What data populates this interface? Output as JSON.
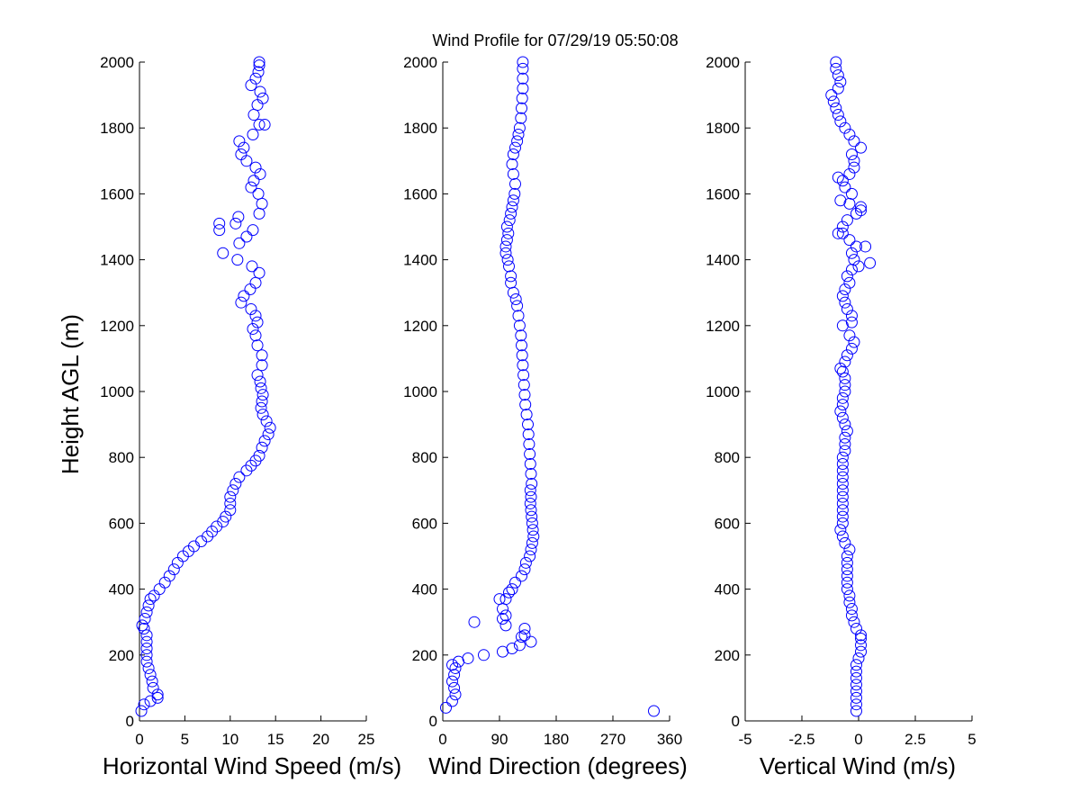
{
  "figure": {
    "title": "Wind Profile for  07/29/19 05:50:08",
    "ylabel": "Height AGL (m)",
    "marker_color": "#0000ff"
  },
  "chart_data": [
    {
      "type": "scatter",
      "xlabel": "Horizontal Wind Speed (m/s)",
      "ylabel": "Height AGL (m)",
      "xlim": [
        0,
        25
      ],
      "ylim": [
        0,
        2000
      ],
      "xticks": [
        0,
        5,
        10,
        15,
        20,
        25
      ],
      "xtick_labels": [
        "0",
        "5",
        "10",
        "15",
        "20",
        "25"
      ],
      "yticks": [
        0,
        200,
        400,
        600,
        800,
        1000,
        1200,
        1400,
        1600,
        1800,
        2000
      ],
      "ytick_labels": [
        "0",
        "200",
        "400",
        "600",
        "800",
        "1000",
        "1200",
        "1400",
        "1600",
        "1800",
        "2000"
      ],
      "points": [
        [
          0.2,
          30
        ],
        [
          0.5,
          50
        ],
        [
          1.2,
          60
        ],
        [
          2.0,
          70
        ],
        [
          2.0,
          80
        ],
        [
          1.5,
          100
        ],
        [
          1.4,
          120
        ],
        [
          1.2,
          140
        ],
        [
          1.0,
          160
        ],
        [
          0.8,
          180
        ],
        [
          0.8,
          200
        ],
        [
          0.8,
          220
        ],
        [
          0.8,
          240
        ],
        [
          0.8,
          260
        ],
        [
          0.5,
          280
        ],
        [
          0.3,
          290
        ],
        [
          0.6,
          310
        ],
        [
          0.8,
          330
        ],
        [
          1.0,
          350
        ],
        [
          1.2,
          370
        ],
        [
          1.6,
          380
        ],
        [
          2.2,
          400
        ],
        [
          2.8,
          420
        ],
        [
          3.3,
          440
        ],
        [
          3.8,
          460
        ],
        [
          4.2,
          480
        ],
        [
          4.8,
          500
        ],
        [
          5.4,
          515
        ],
        [
          6.0,
          530
        ],
        [
          6.8,
          545
        ],
        [
          7.5,
          560
        ],
        [
          8.0,
          575
        ],
        [
          8.5,
          590
        ],
        [
          9.2,
          605
        ],
        [
          9.5,
          620
        ],
        [
          10.0,
          640
        ],
        [
          10.0,
          660
        ],
        [
          10.0,
          680
        ],
        [
          10.3,
          700
        ],
        [
          10.6,
          720
        ],
        [
          11.0,
          740
        ],
        [
          11.8,
          760
        ],
        [
          12.3,
          775
        ],
        [
          12.8,
          790
        ],
        [
          13.2,
          805
        ],
        [
          13.5,
          830
        ],
        [
          13.8,
          850
        ],
        [
          14.2,
          870
        ],
        [
          14.4,
          890
        ],
        [
          14.0,
          910
        ],
        [
          13.6,
          930
        ],
        [
          13.4,
          950
        ],
        [
          13.5,
          970
        ],
        [
          13.6,
          990
        ],
        [
          13.4,
          1010
        ],
        [
          13.3,
          1030
        ],
        [
          13.0,
          1050
        ],
        [
          13.5,
          1080
        ],
        [
          13.5,
          1110
        ],
        [
          13.0,
          1140
        ],
        [
          12.8,
          1170
        ],
        [
          12.5,
          1190
        ],
        [
          13.0,
          1210
        ],
        [
          12.8,
          1230
        ],
        [
          12.3,
          1250
        ],
        [
          11.2,
          1270
        ],
        [
          11.5,
          1290
        ],
        [
          12.2,
          1310
        ],
        [
          12.8,
          1330
        ],
        [
          13.2,
          1360
        ],
        [
          12.4,
          1380
        ],
        [
          10.8,
          1400
        ],
        [
          9.2,
          1420
        ],
        [
          11.0,
          1450
        ],
        [
          11.8,
          1470
        ],
        [
          12.5,
          1490
        ],
        [
          8.8,
          1490
        ],
        [
          8.8,
          1510
        ],
        [
          10.6,
          1510
        ],
        [
          10.9,
          1530
        ],
        [
          13.2,
          1540
        ],
        [
          13.5,
          1570
        ],
        [
          13.1,
          1600
        ],
        [
          12.3,
          1620
        ],
        [
          12.6,
          1640
        ],
        [
          13.3,
          1660
        ],
        [
          12.8,
          1680
        ],
        [
          11.8,
          1700
        ],
        [
          11.2,
          1720
        ],
        [
          11.5,
          1740
        ],
        [
          11.0,
          1760
        ],
        [
          12.5,
          1780
        ],
        [
          13.2,
          1810
        ],
        [
          13.8,
          1810
        ],
        [
          12.6,
          1840
        ],
        [
          13.0,
          1870
        ],
        [
          13.6,
          1890
        ],
        [
          13.3,
          1910
        ],
        [
          12.3,
          1930
        ],
        [
          12.8,
          1950
        ],
        [
          13.1,
          1970
        ],
        [
          13.2,
          1990
        ],
        [
          13.2,
          2000
        ]
      ]
    },
    {
      "type": "scatter",
      "xlabel": "Wind Direction (degrees)",
      "ylabel": "",
      "xlim": [
        0,
        360
      ],
      "ylim": [
        0,
        2000
      ],
      "xticks": [
        0,
        90,
        180,
        270,
        360
      ],
      "xtick_labels": [
        "0",
        "90",
        "180",
        "270",
        "360"
      ],
      "yticks": [
        0,
        200,
        400,
        600,
        800,
        1000,
        1200,
        1400,
        1600,
        1800,
        2000
      ],
      "ytick_labels": [
        "0",
        "200",
        "400",
        "600",
        "800",
        "1000",
        "1200",
        "1400",
        "1600",
        "1800",
        "2000"
      ],
      "points": [
        [
          335,
          30
        ],
        [
          5,
          40
        ],
        [
          15,
          60
        ],
        [
          20,
          80
        ],
        [
          18,
          100
        ],
        [
          15,
          120
        ],
        [
          18,
          140
        ],
        [
          20,
          160
        ],
        [
          15,
          170
        ],
        [
          25,
          180
        ],
        [
          40,
          190
        ],
        [
          65,
          200
        ],
        [
          95,
          210
        ],
        [
          110,
          220
        ],
        [
          122,
          230
        ],
        [
          140,
          240
        ],
        [
          125,
          255
        ],
        [
          130,
          260
        ],
        [
          130,
          280
        ],
        [
          100,
          290
        ],
        [
          50,
          300
        ],
        [
          95,
          310
        ],
        [
          100,
          320
        ],
        [
          95,
          340
        ],
        [
          90,
          370
        ],
        [
          100,
          370
        ],
        [
          105,
          390
        ],
        [
          110,
          400
        ],
        [
          115,
          420
        ],
        [
          125,
          440
        ],
        [
          130,
          460
        ],
        [
          132,
          480
        ],
        [
          138,
          500
        ],
        [
          140,
          520
        ],
        [
          142,
          540
        ],
        [
          144,
          560
        ],
        [
          143,
          580
        ],
        [
          142,
          600
        ],
        [
          141,
          620
        ],
        [
          140,
          640
        ],
        [
          139,
          660
        ],
        [
          140,
          680
        ],
        [
          139,
          700
        ],
        [
          141,
          720
        ],
        [
          140,
          750
        ],
        [
          139,
          780
        ],
        [
          138,
          810
        ],
        [
          137,
          840
        ],
        [
          136,
          870
        ],
        [
          135,
          900
        ],
        [
          133,
          930
        ],
        [
          131,
          960
        ],
        [
          130,
          990
        ],
        [
          129,
          1020
        ],
        [
          128,
          1050
        ],
        [
          127,
          1080
        ],
        [
          126,
          1110
        ],
        [
          125,
          1140
        ],
        [
          124,
          1170
        ],
        [
          122,
          1200
        ],
        [
          120,
          1230
        ],
        [
          118,
          1260
        ],
        [
          116,
          1280
        ],
        [
          112,
          1300
        ],
        [
          108,
          1330
        ],
        [
          108,
          1350
        ],
        [
          105,
          1380
        ],
        [
          103,
          1400
        ],
        [
          100,
          1420
        ],
        [
          100,
          1440
        ],
        [
          102,
          1460
        ],
        [
          104,
          1480
        ],
        [
          102,
          1500
        ],
        [
          106,
          1520
        ],
        [
          108,
          1540
        ],
        [
          110,
          1560
        ],
        [
          112,
          1580
        ],
        [
          114,
          1600
        ],
        [
          115,
          1630
        ],
        [
          112,
          1660
        ],
        [
          110,
          1690
        ],
        [
          112,
          1720
        ],
        [
          115,
          1740
        ],
        [
          118,
          1760
        ],
        [
          120,
          1780
        ],
        [
          122,
          1800
        ],
        [
          124,
          1830
        ],
        [
          125,
          1860
        ],
        [
          126,
          1890
        ],
        [
          127,
          1920
        ],
        [
          127,
          1950
        ],
        [
          127,
          1980
        ],
        [
          127,
          2000
        ]
      ]
    },
    {
      "type": "scatter",
      "xlabel": "Vertical Wind (m/s)",
      "ylabel": "",
      "xlim": [
        -5,
        5
      ],
      "ylim": [
        0,
        2000
      ],
      "xticks": [
        -5,
        -2.5,
        0,
        2.5,
        5
      ],
      "xtick_labels": [
        "-5",
        "-2.5",
        "0",
        "2.5",
        "5"
      ],
      "yticks": [
        0,
        200,
        400,
        600,
        800,
        1000,
        1200,
        1400,
        1600,
        1800,
        2000
      ],
      "ytick_labels": [
        "0",
        "200",
        "400",
        "600",
        "800",
        "1000",
        "1200",
        "1400",
        "1600",
        "1800",
        "2000"
      ],
      "points": [
        [
          -0.1,
          30
        ],
        [
          -0.1,
          50
        ],
        [
          -0.1,
          70
        ],
        [
          -0.1,
          90
        ],
        [
          -0.1,
          110
        ],
        [
          -0.1,
          130
        ],
        [
          -0.1,
          150
        ],
        [
          -0.1,
          170
        ],
        [
          0.0,
          190
        ],
        [
          0.1,
          210
        ],
        [
          0.1,
          230
        ],
        [
          0.1,
          250
        ],
        [
          0.1,
          260
        ],
        [
          -0.1,
          280
        ],
        [
          -0.2,
          300
        ],
        [
          -0.3,
          320
        ],
        [
          -0.3,
          340
        ],
        [
          -0.4,
          360
        ],
        [
          -0.4,
          380
        ],
        [
          -0.5,
          400
        ],
        [
          -0.5,
          420
        ],
        [
          -0.5,
          440
        ],
        [
          -0.5,
          460
        ],
        [
          -0.5,
          480
        ],
        [
          -0.5,
          500
        ],
        [
          -0.4,
          520
        ],
        [
          -0.6,
          540
        ],
        [
          -0.7,
          560
        ],
        [
          -0.8,
          580
        ],
        [
          -0.7,
          600
        ],
        [
          -0.7,
          620
        ],
        [
          -0.7,
          640
        ],
        [
          -0.7,
          660
        ],
        [
          -0.7,
          680
        ],
        [
          -0.7,
          700
        ],
        [
          -0.7,
          720
        ],
        [
          -0.7,
          740
        ],
        [
          -0.7,
          760
        ],
        [
          -0.7,
          780
        ],
        [
          -0.7,
          800
        ],
        [
          -0.6,
          820
        ],
        [
          -0.6,
          840
        ],
        [
          -0.6,
          860
        ],
        [
          -0.5,
          880
        ],
        [
          -0.6,
          900
        ],
        [
          -0.7,
          920
        ],
        [
          -0.8,
          940
        ],
        [
          -0.7,
          960
        ],
        [
          -0.7,
          980
        ],
        [
          -0.6,
          1000
        ],
        [
          -0.6,
          1020
        ],
        [
          -0.6,
          1040
        ],
        [
          -0.7,
          1060
        ],
        [
          -0.8,
          1070
        ],
        [
          -0.6,
          1090
        ],
        [
          -0.5,
          1110
        ],
        [
          -0.3,
          1130
        ],
        [
          -0.2,
          1150
        ],
        [
          -0.4,
          1170
        ],
        [
          -0.7,
          1200
        ],
        [
          -0.3,
          1210
        ],
        [
          -0.3,
          1230
        ],
        [
          -0.5,
          1250
        ],
        [
          -0.6,
          1270
        ],
        [
          -0.7,
          1290
        ],
        [
          -0.6,
          1310
        ],
        [
          -0.4,
          1330
        ],
        [
          -0.5,
          1350
        ],
        [
          -0.3,
          1370
        ],
        [
          0.0,
          1380
        ],
        [
          0.5,
          1390
        ],
        [
          -0.2,
          1400
        ],
        [
          -0.3,
          1420
        ],
        [
          -0.1,
          1440
        ],
        [
          0.3,
          1440
        ],
        [
          -0.4,
          1460
        ],
        [
          -0.7,
          1480
        ],
        [
          -0.9,
          1480
        ],
        [
          -0.7,
          1500
        ],
        [
          -0.5,
          1520
        ],
        [
          -0.1,
          1540
        ],
        [
          0.1,
          1550
        ],
        [
          0.1,
          1560
        ],
        [
          -0.4,
          1570
        ],
        [
          -0.8,
          1580
        ],
        [
          -0.3,
          1600
        ],
        [
          -0.6,
          1620
        ],
        [
          -0.7,
          1640
        ],
        [
          -0.9,
          1650
        ],
        [
          -0.4,
          1660
        ],
        [
          -0.2,
          1680
        ],
        [
          -0.2,
          1700
        ],
        [
          -0.3,
          1720
        ],
        [
          0.1,
          1740
        ],
        [
          -0.2,
          1760
        ],
        [
          -0.4,
          1780
        ],
        [
          -0.6,
          1800
        ],
        [
          -0.8,
          1820
        ],
        [
          -0.9,
          1840
        ],
        [
          -1.0,
          1860
        ],
        [
          -1.1,
          1880
        ],
        [
          -1.2,
          1900
        ],
        [
          -0.9,
          1920
        ],
        [
          -0.8,
          1940
        ],
        [
          -0.9,
          1960
        ],
        [
          -1.0,
          1980
        ],
        [
          -1.0,
          2000
        ]
      ]
    }
  ]
}
